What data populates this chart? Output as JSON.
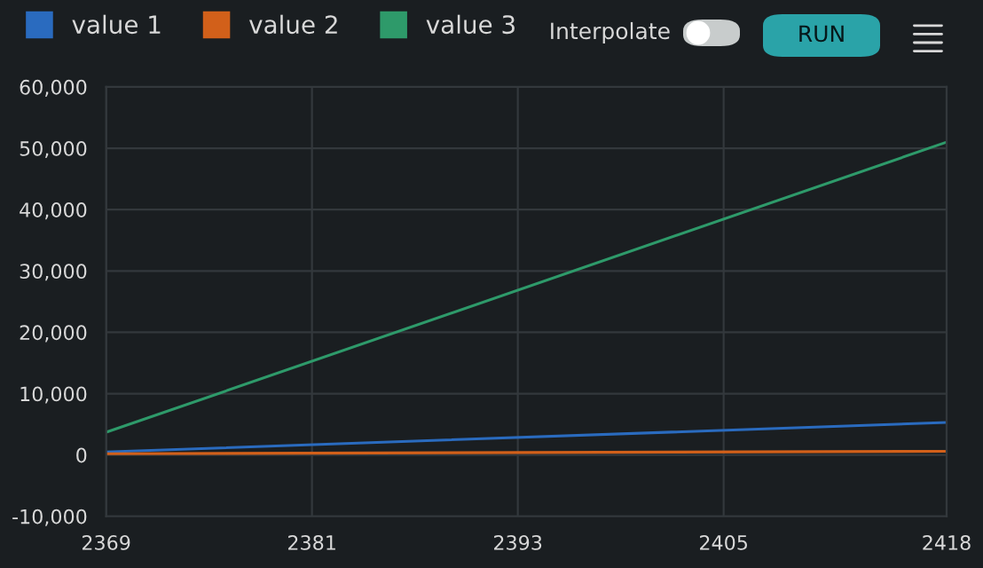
{
  "chart_data": {
    "type": "line",
    "x": [
      2369,
      2418
    ],
    "series": [
      {
        "name": "value 1",
        "color": "#2a6bbf",
        "values": [
          500,
          5300
        ]
      },
      {
        "name": "value 2",
        "color": "#d2601a",
        "values": [
          200,
          600
        ]
      },
      {
        "name": "value 3",
        "color": "#2e9a6a",
        "values": [
          3700,
          51000
        ]
      }
    ],
    "xlim": [
      2369,
      2418
    ],
    "xticks": [
      2369,
      2381,
      2393,
      2405,
      2418
    ],
    "ylim": [
      -10000,
      60000
    ],
    "yticks": [
      {
        "value": -10000,
        "label": "-10,000"
      },
      {
        "value": 0,
        "label": "0"
      },
      {
        "value": 10000,
        "label": "10,000"
      },
      {
        "value": 20000,
        "label": "20,000"
      },
      {
        "value": 30000,
        "label": "30,000"
      },
      {
        "value": 40000,
        "label": "40,000"
      },
      {
        "value": 50000,
        "label": "50,000"
      },
      {
        "value": 60000,
        "label": "60,000"
      }
    ],
    "grid": true,
    "legend": "top left",
    "marker": "none",
    "line_style": "solid",
    "annotations": [
      "Interpolate",
      "RUN"
    ]
  }
}
